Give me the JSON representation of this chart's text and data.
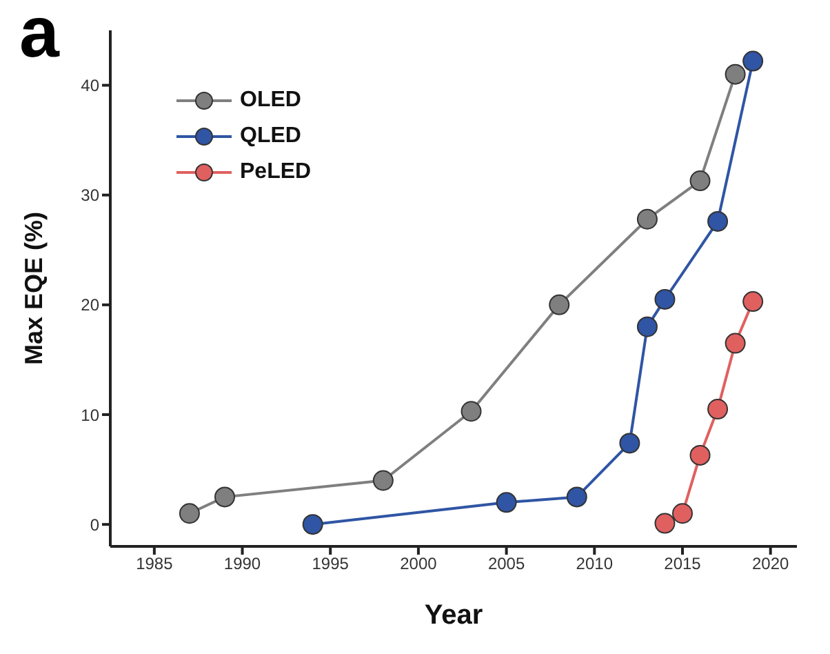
{
  "chart_data": {
    "type": "line",
    "xlabel": "Year",
    "ylabel": "Max EQE (%)",
    "annotations": [
      "a"
    ],
    "xlim": [
      1982.5,
      2021.5
    ],
    "xticks": [
      1985,
      1990,
      1995,
      2000,
      2005,
      2010,
      2015,
      2020
    ],
    "ylim": [
      -2,
      45
    ],
    "yticks": [
      0,
      10,
      20,
      30,
      40
    ],
    "grid": false,
    "legend": "top left",
    "marker": "circle",
    "line_style": "solid",
    "series": [
      {
        "name": "OLED",
        "color": "#7f7f7f",
        "x": [
          1987,
          1989,
          1998,
          2003,
          2008,
          2013,
          2016,
          2018
        ],
        "values": [
          1.0,
          2.5,
          4.0,
          10.3,
          20,
          27.8,
          31.3,
          41
        ]
      },
      {
        "name": "QLED",
        "color": "#2f55a4",
        "x": [
          1994,
          2005,
          2009,
          2012,
          2013,
          2014,
          2017,
          2019
        ],
        "values": [
          0,
          2,
          2.5,
          7.4,
          18,
          20.5,
          27.6,
          42.2
        ]
      },
      {
        "name": "PeLED",
        "color": "#e06060",
        "x": [
          2014,
          2015,
          2016,
          2017,
          2018,
          2019
        ],
        "values": [
          0.1,
          1,
          6.3,
          10.5,
          16.5,
          20.3
        ]
      }
    ]
  }
}
